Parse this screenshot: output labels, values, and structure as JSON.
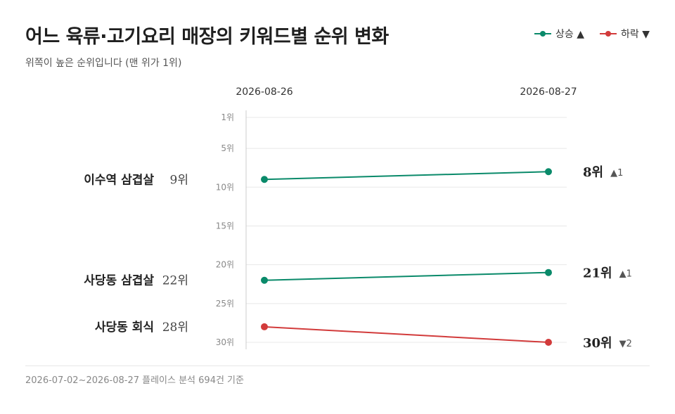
{
  "title": "어느 육류·고기요리 매장의 키워드별 순위 변화",
  "subtitle": "위쪽이 높은 순위입니다 (맨 위가 1위)",
  "legend": {
    "up_label": "상승 ▲",
    "down_label": "하락 ▼"
  },
  "colors": {
    "up": "#0a8a6a",
    "down": "#d23b3b",
    "grid": "#e8e8e8",
    "axis": "#cccccc",
    "tick": "#888888"
  },
  "footer": "2026-07-02~2026-08-27 플레이스 분석 694건 기준",
  "chart_data": {
    "type": "line",
    "x": [
      "2026-08-26",
      "2026-08-27"
    ],
    "ylim": [
      1,
      30
    ],
    "y_inverted": true,
    "y_ticks": [
      1,
      5,
      10,
      15,
      20,
      25,
      30
    ],
    "y_tick_labels": [
      "1위",
      "5위",
      "10위",
      "15위",
      "20위",
      "25위",
      "30위"
    ],
    "grid": true,
    "legend_position": "top-right",
    "series": [
      {
        "name": "이수역 삼겹살",
        "values": [
          9,
          8
        ],
        "start_label": "9위",
        "end_label": "8위",
        "change": "▲1",
        "direction": "up"
      },
      {
        "name": "사당동 삼겹살",
        "values": [
          22,
          21
        ],
        "start_label": "22위",
        "end_label": "21위",
        "change": "▲1",
        "direction": "up"
      },
      {
        "name": "사당동 회식",
        "values": [
          28,
          30
        ],
        "start_label": "28위",
        "end_label": "30위",
        "change": "▼2",
        "direction": "down"
      }
    ]
  }
}
